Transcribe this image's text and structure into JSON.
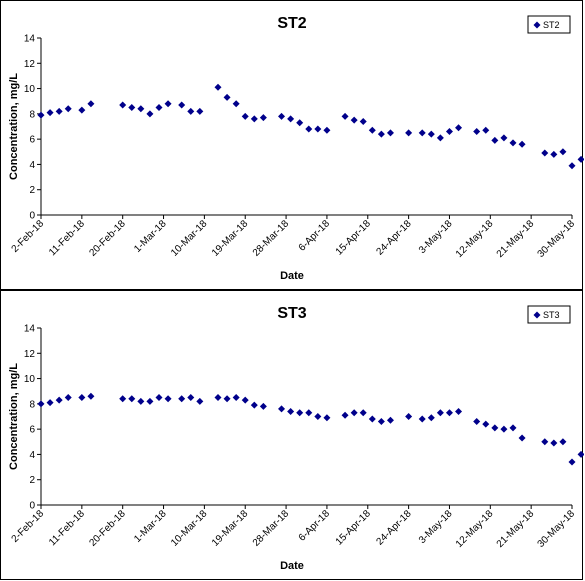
{
  "chart_data": [
    {
      "type": "scatter",
      "title": "ST2",
      "xlabel": "Date",
      "ylabel": "Concentration, mg/L",
      "ylim": [
        0,
        14
      ],
      "yticks": [
        0,
        2,
        4,
        6,
        8,
        10,
        12,
        14
      ],
      "xlim": [
        "2018-02-02",
        "2018-05-30"
      ],
      "xticks": [
        "2-Feb-18",
        "11-Feb-18",
        "20-Feb-18",
        "1-Mar-18",
        "10-Mar-18",
        "19-Mar-18",
        "28-Mar-18",
        "6-Apr-18",
        "15-Apr-18",
        "24-Apr-18",
        "3-May-18",
        "12-May-18",
        "21-May-18",
        "30-May-18"
      ],
      "legend": "top-right",
      "color": "#00008B",
      "series": [
        {
          "name": "ST2",
          "x": [
            "2018-02-02",
            "2018-02-04",
            "2018-02-06",
            "2018-02-08",
            "2018-02-11",
            "2018-02-13",
            "2018-02-20",
            "2018-02-22",
            "2018-02-24",
            "2018-02-26",
            "2018-02-28",
            "2018-03-02",
            "2018-03-05",
            "2018-03-07",
            "2018-03-09",
            "2018-03-13",
            "2018-03-15",
            "2018-03-17",
            "2018-03-19",
            "2018-03-21",
            "2018-03-23",
            "2018-03-27",
            "2018-03-29",
            "2018-03-31",
            "2018-04-02",
            "2018-04-04",
            "2018-04-06",
            "2018-04-10",
            "2018-04-12",
            "2018-04-14",
            "2018-04-16",
            "2018-04-18",
            "2018-04-20",
            "2018-04-24",
            "2018-04-27",
            "2018-04-29",
            "2018-05-01",
            "2018-05-03",
            "2018-05-05",
            "2018-05-09",
            "2018-05-11",
            "2018-05-13",
            "2018-05-15",
            "2018-05-17",
            "2018-05-19",
            "2018-05-24",
            "2018-05-26",
            "2018-05-28",
            "2018-05-30",
            "2018-06-01"
          ],
          "y": [
            7.9,
            8.1,
            8.2,
            8.4,
            8.3,
            8.8,
            8.7,
            8.5,
            8.4,
            8.0,
            8.5,
            8.8,
            8.7,
            8.2,
            8.2,
            10.1,
            9.3,
            8.8,
            7.8,
            7.6,
            7.7,
            7.8,
            7.6,
            7.3,
            6.8,
            6.8,
            6.7,
            7.8,
            7.5,
            7.4,
            6.7,
            6.4,
            6.5,
            6.5,
            6.5,
            6.4,
            6.1,
            6.6,
            6.9,
            6.6,
            6.7,
            5.9,
            6.1,
            5.7,
            5.6,
            4.9,
            4.8,
            5.0,
            3.9,
            4.4
          ]
        }
      ]
    },
    {
      "type": "scatter",
      "title": "ST3",
      "xlabel": "Date",
      "ylabel": "Concentration, mg/L",
      "ylim": [
        0,
        14
      ],
      "yticks": [
        0,
        2,
        4,
        6,
        8,
        10,
        12,
        14
      ],
      "xlim": [
        "2018-02-02",
        "2018-05-30"
      ],
      "xticks": [
        "2-Feb-18",
        "11-Feb-18",
        "20-Feb-18",
        "1-Mar-18",
        "10-Mar-18",
        "19-Mar-18",
        "28-Mar-18",
        "6-Apr-18",
        "15-Apr-18",
        "24-Apr-18",
        "3-May-18",
        "12-May-18",
        "21-May-18",
        "30-May-18"
      ],
      "legend": "top-right",
      "color": "#00008B",
      "series": [
        {
          "name": "ST3",
          "x": [
            "2018-02-02",
            "2018-02-04",
            "2018-02-06",
            "2018-02-08",
            "2018-02-11",
            "2018-02-13",
            "2018-02-20",
            "2018-02-22",
            "2018-02-24",
            "2018-02-26",
            "2018-02-28",
            "2018-03-02",
            "2018-03-05",
            "2018-03-07",
            "2018-03-09",
            "2018-03-13",
            "2018-03-15",
            "2018-03-17",
            "2018-03-19",
            "2018-03-21",
            "2018-03-23",
            "2018-03-27",
            "2018-03-29",
            "2018-03-31",
            "2018-04-02",
            "2018-04-04",
            "2018-04-06",
            "2018-04-10",
            "2018-04-12",
            "2018-04-14",
            "2018-04-16",
            "2018-04-18",
            "2018-04-20",
            "2018-04-24",
            "2018-04-27",
            "2018-04-29",
            "2018-05-01",
            "2018-05-03",
            "2018-05-05",
            "2018-05-09",
            "2018-05-11",
            "2018-05-13",
            "2018-05-15",
            "2018-05-17",
            "2018-05-19",
            "2018-05-24",
            "2018-05-26",
            "2018-05-28",
            "2018-05-30",
            "2018-06-01"
          ],
          "y": [
            8.0,
            8.1,
            8.3,
            8.5,
            8.5,
            8.6,
            8.4,
            8.4,
            8.2,
            8.2,
            8.5,
            8.4,
            8.4,
            8.5,
            8.2,
            8.5,
            8.4,
            8.5,
            8.3,
            7.9,
            7.8,
            7.6,
            7.4,
            7.3,
            7.3,
            7.0,
            6.9,
            7.1,
            7.3,
            7.3,
            6.8,
            6.6,
            6.7,
            7.0,
            6.8,
            6.9,
            7.3,
            7.3,
            7.4,
            6.6,
            6.4,
            6.1,
            6.0,
            6.1,
            5.3,
            5.0,
            4.9,
            5.0,
            3.4,
            4.0
          ]
        }
      ]
    }
  ]
}
